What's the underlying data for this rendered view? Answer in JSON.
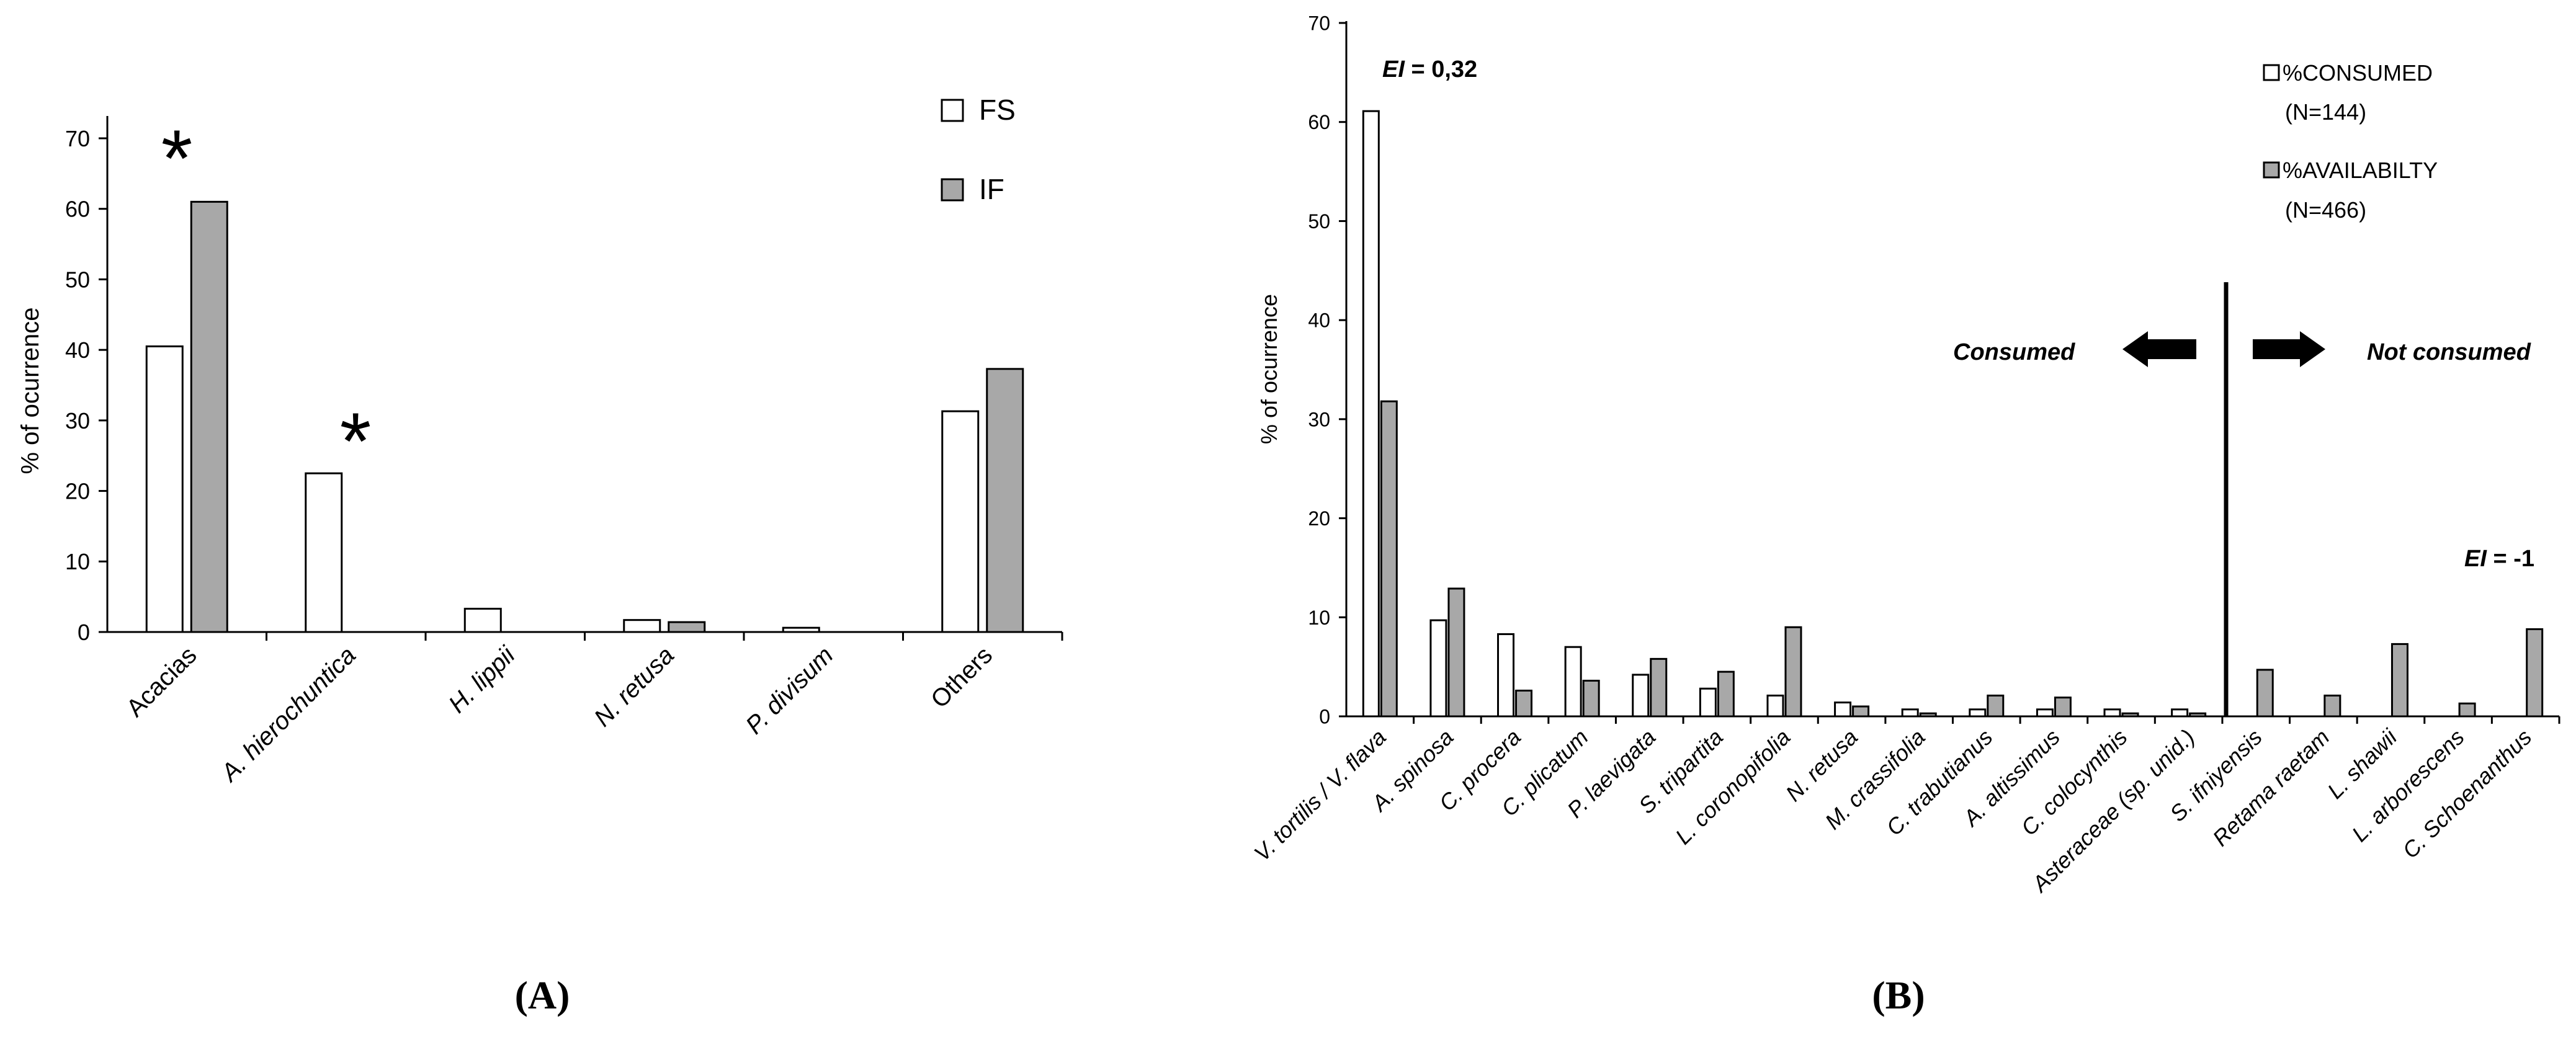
{
  "colors": {
    "consumed": "#ffffff",
    "available": "#a8a8a8",
    "stroke": "#000000",
    "background": "#ffffff"
  },
  "panel_labels": {
    "a": "(A)",
    "b": "(B)"
  },
  "chart_data": [
    {
      "type": "bar",
      "panel": "A",
      "ylabel": "% of ocurrence",
      "xlabel": "",
      "ylim": [
        0,
        70
      ],
      "yticks": [
        0,
        10,
        20,
        30,
        40,
        50,
        60,
        70
      ],
      "categories": [
        "Acacias",
        "A. hierochuntica",
        "H. lippii",
        "N. retusa",
        "P. divisum",
        "Others"
      ],
      "categories_italic": [
        false,
        true,
        true,
        true,
        true,
        false
      ],
      "series": [
        {
          "name": "FS",
          "values": [
            40.5,
            22.5,
            3.3,
            1.7,
            0.6,
            31.3
          ]
        },
        {
          "name": "IF",
          "values": [
            61.0,
            0,
            0,
            1.4,
            0,
            37.3
          ]
        }
      ],
      "legend_position": "top-right",
      "annotations": [
        {
          "text": "*",
          "category": "Acacias"
        },
        {
          "text": "*",
          "category": "A. hierochuntica"
        }
      ]
    },
    {
      "type": "bar",
      "panel": "B",
      "ylabel": "% of ocurrence",
      "xlabel": "",
      "ylim": [
        0,
        70
      ],
      "yticks": [
        0,
        10,
        20,
        30,
        40,
        50,
        60,
        70
      ],
      "categories": [
        "V. tortilis / V. flava",
        "A. spinosa",
        "C. procera",
        "C. plicatum",
        "P. laevigata",
        "S. tripartita",
        "L. coronopifolia",
        "N. retusa",
        "M. crassifolia",
        "C. trabutianus",
        "A. altissimus",
        "C. colocynthis",
        "Asteraceae (sp. unid.)",
        "S. ifniyensis",
        "Retama raetam",
        "L. shawii",
        "L. arborescens",
        "C. Schoenanthus"
      ],
      "series": [
        {
          "name": "%CONSUMED",
          "name_n": "(N=144)",
          "values": [
            61.1,
            9.7,
            8.3,
            7.0,
            4.2,
            2.8,
            2.1,
            1.4,
            0.7,
            0.7,
            0.7,
            0.7,
            0.7,
            0,
            0,
            0,
            0,
            0
          ]
        },
        {
          "name": "%AVAILABILTY",
          "name_n": "(N=466)",
          "values": [
            31.8,
            12.9,
            2.6,
            3.6,
            5.8,
            4.5,
            9.0,
            1.0,
            0.3,
            2.1,
            1.9,
            0.3,
            0.3,
            4.7,
            2.1,
            7.3,
            1.3,
            8.8
          ]
        }
      ],
      "legend_position": "top-right",
      "annotations": [
        {
          "ei_prefix": "EI",
          "ei_value": " = 0,32",
          "category": "V. tortilis / V. flava"
        },
        {
          "ei_prefix": "EI",
          "ei_value": " = -1",
          "category": "C. Schoenanthus"
        },
        {
          "label": "Consumed",
          "direction": "left"
        },
        {
          "label": "Not consumed",
          "direction": "right"
        }
      ]
    }
  ]
}
